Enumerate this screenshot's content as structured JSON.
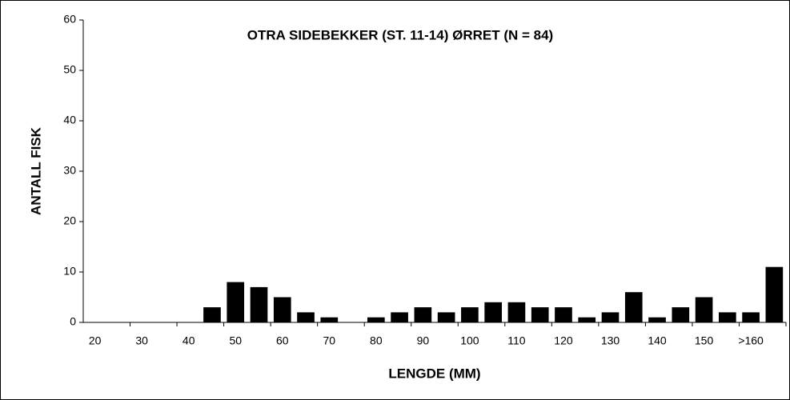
{
  "chart_data": {
    "type": "bar",
    "title": "OTRA SIDEBEKKER (ST. 11-14) ØRRET (N = 84)",
    "x_label": "LENGDE (MM)",
    "y_label": "ANTALL FISK",
    "categories": [
      "20",
      null,
      "30",
      null,
      "40",
      null,
      "50",
      null,
      "60",
      null,
      "70",
      null,
      "80",
      null,
      "90",
      null,
      "100",
      null,
      "110",
      null,
      "120",
      null,
      "130",
      null,
      "140",
      null,
      "150",
      null,
      ">160",
      null
    ],
    "values": [
      0,
      0,
      0,
      0,
      0,
      3,
      8,
      7,
      5,
      2,
      1,
      0,
      1,
      2,
      3,
      2,
      3,
      4,
      4,
      3,
      3,
      1,
      2,
      6,
      1,
      3,
      5,
      2,
      2,
      11
    ],
    "color": "#000000",
    "ylim": [
      0,
      60
    ],
    "yticks": [
      0,
      10,
      20,
      30,
      40,
      50,
      60
    ],
    "grid": false
  }
}
